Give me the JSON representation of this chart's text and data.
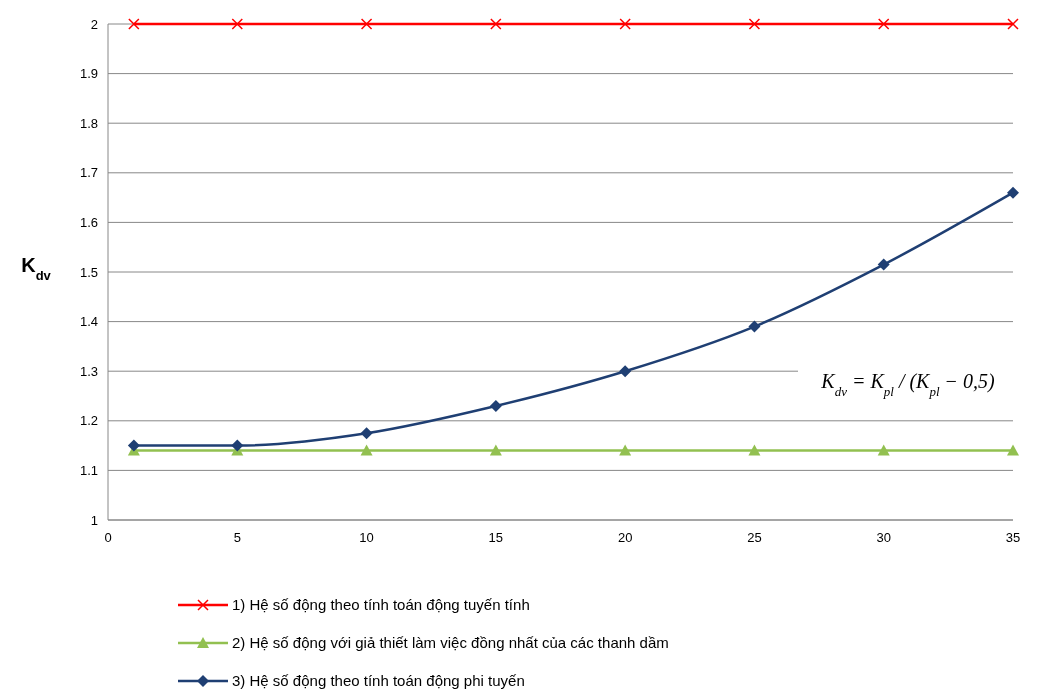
{
  "chart_data": {
    "type": "line",
    "ylabel": "K$_{dv}$",
    "x": [
      1,
      5,
      10,
      15,
      20,
      25,
      30,
      35
    ],
    "xlim": [
      0,
      35
    ],
    "xticks": [
      0,
      5,
      10,
      15,
      20,
      25,
      30,
      35
    ],
    "ylim": [
      1,
      2
    ],
    "yticks": [
      1,
      1.1,
      1.2,
      1.3,
      1.4,
      1.5,
      1.6,
      1.7,
      1.8,
      1.9,
      2
    ],
    "grid": "y",
    "legend": "bottom",
    "series": [
      {
        "name": "1) Hệ số động theo tính toán động tuyến tính",
        "color": "#ff0000",
        "marker": "cross",
        "values": [
          2,
          2,
          2,
          2,
          2,
          2,
          2,
          2
        ]
      },
      {
        "name": "2) Hệ số động với giả thiết làm việc đồng nhất của các thanh dầm",
        "color": "#92c050",
        "marker": "triangle",
        "values": [
          1.14,
          1.14,
          1.14,
          1.14,
          1.14,
          1.14,
          1.14,
          1.14
        ]
      },
      {
        "name": "3) Hệ số động theo tính toán động phi tuyến",
        "color": "#1f3f73",
        "marker": "diamond",
        "values": [
          1.15,
          1.15,
          1.175,
          1.23,
          1.3,
          1.39,
          1.515,
          1.66
        ]
      }
    ],
    "annotations": [
      "K$_{dv}$ = K$_{pl}$ / (K$_{pl}$ − 0,5)"
    ]
  }
}
